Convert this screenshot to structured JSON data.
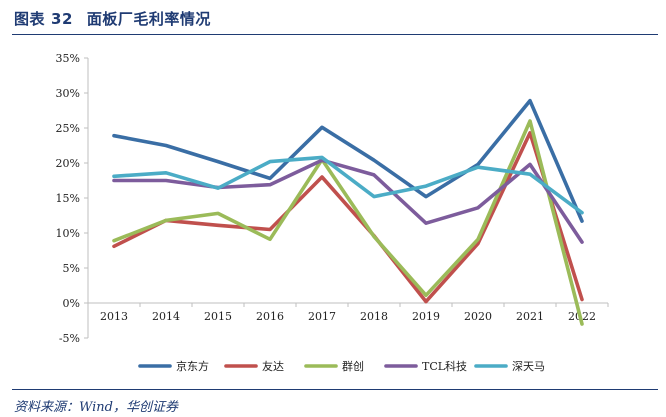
{
  "figure": {
    "label": "图表",
    "number": "32",
    "title": "面板厂毛利率情况",
    "source": "资料来源：Wind，华创证券"
  },
  "colors": {
    "title": "#1f3b73",
    "axis": "#bfbfbf",
    "text": "#222222"
  },
  "chart_data": {
    "type": "line",
    "title": "面板厂毛利率情况",
    "xlabel": "",
    "ylabel": "",
    "x": [
      "2013",
      "2014",
      "2015",
      "2016",
      "2017",
      "2018",
      "2019",
      "2020",
      "2021",
      "2022"
    ],
    "ylim": [
      -5,
      35
    ],
    "yticks": [
      -5,
      0,
      5,
      10,
      15,
      20,
      25,
      30,
      35
    ],
    "ytick_labels": [
      "-5%",
      "0%",
      "5%",
      "10%",
      "15%",
      "20%",
      "25%",
      "30%",
      "35%"
    ],
    "grid": false,
    "legend_position": "bottom",
    "series": [
      {
        "name": "京东方",
        "color": "#3a6ea5",
        "values": [
          23.9,
          22.5,
          20.2,
          17.8,
          25.1,
          20.4,
          15.2,
          19.8,
          28.9,
          11.7
        ]
      },
      {
        "name": "友达",
        "color": "#c0504d",
        "values": [
          8.1,
          11.8,
          11.1,
          10.5,
          18.0,
          9.6,
          0.2,
          8.5,
          24.3,
          0.5
        ]
      },
      {
        "name": "群创",
        "color": "#9bbb59",
        "values": [
          8.9,
          11.8,
          12.8,
          9.1,
          20.5,
          9.5,
          1.1,
          9.1,
          26.0,
          -3.0
        ]
      },
      {
        "name": "TCL科技",
        "color": "#7d5c9c",
        "values": [
          17.5,
          17.5,
          16.5,
          16.9,
          20.4,
          18.3,
          11.4,
          13.6,
          19.8,
          8.7
        ]
      },
      {
        "name": "深天马",
        "color": "#4bacc6",
        "values": [
          18.1,
          18.6,
          16.4,
          20.2,
          20.8,
          15.2,
          16.7,
          19.4,
          18.4,
          12.9
        ]
      }
    ]
  }
}
